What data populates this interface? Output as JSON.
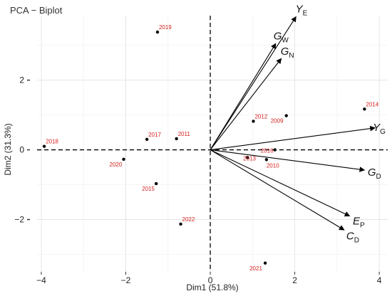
{
  "chart_data": {
    "type": "scatter",
    "subtype": "pca-biplot",
    "title": "PCA − Biplot",
    "xlabel": "Dim1 (51.8%)",
    "ylabel": "Dim2 (31.3%)",
    "xlim": [
      -4.1,
      4.2
    ],
    "ylim": [
      -3.5,
      3.85
    ],
    "x_ticks": [
      -4,
      -2,
      0,
      2,
      4
    ],
    "x_tick_labels": [
      "−4",
      "−2",
      "0",
      "2",
      "4"
    ],
    "y_ticks": [
      -2,
      0,
      2
    ],
    "y_tick_labels": [
      "−2",
      "0",
      "2"
    ],
    "grid": true,
    "zero_lines": "dashed",
    "point_color": "#000000",
    "label_color": "#d62020",
    "arrow_color": "#000000",
    "points": [
      {
        "label": "2019",
        "x": -1.25,
        "y": 3.38
      },
      {
        "label": "2014",
        "x": 3.65,
        "y": 1.17
      },
      {
        "label": "2009",
        "x": 1.8,
        "y": 0.98
      },
      {
        "label": "2012",
        "x": 1.02,
        "y": 0.82
      },
      {
        "label": "2017",
        "x": -1.5,
        "y": 0.3
      },
      {
        "label": "2011",
        "x": -0.8,
        "y": 0.32
      },
      {
        "label": "2018",
        "x": -3.93,
        "y": 0.1
      },
      {
        "label": "2020",
        "x": -2.05,
        "y": -0.27
      },
      {
        "label": "2013",
        "x": 0.88,
        "y": -0.22
      },
      {
        "label": "2016",
        "x": 1.53,
        "y": 0.0
      },
      {
        "label": "2010",
        "x": 1.33,
        "y": -0.28
      },
      {
        "label": "2015",
        "x": -1.28,
        "y": -0.97
      },
      {
        "label": "2022",
        "x": -0.7,
        "y": -2.13
      },
      {
        "label": "2021",
        "x": 1.3,
        "y": -3.25
      }
    ],
    "variables": [
      {
        "name": "Y",
        "sub": "E",
        "x": 2.03,
        "y": 3.82
      },
      {
        "name": "G",
        "sub": "W",
        "x": 1.55,
        "y": 3.05
      },
      {
        "name": "G",
        "sub": "N",
        "x": 1.68,
        "y": 2.62
      },
      {
        "name": "Y",
        "sub": "G",
        "x": 3.9,
        "y": 0.63
      },
      {
        "name": "G",
        "sub": "D",
        "x": 3.65,
        "y": -0.58
      },
      {
        "name": "E",
        "sub": "P",
        "x": 3.3,
        "y": -1.9
      },
      {
        "name": "C",
        "sub": "D",
        "x": 3.17,
        "y": -2.3
      }
    ]
  }
}
